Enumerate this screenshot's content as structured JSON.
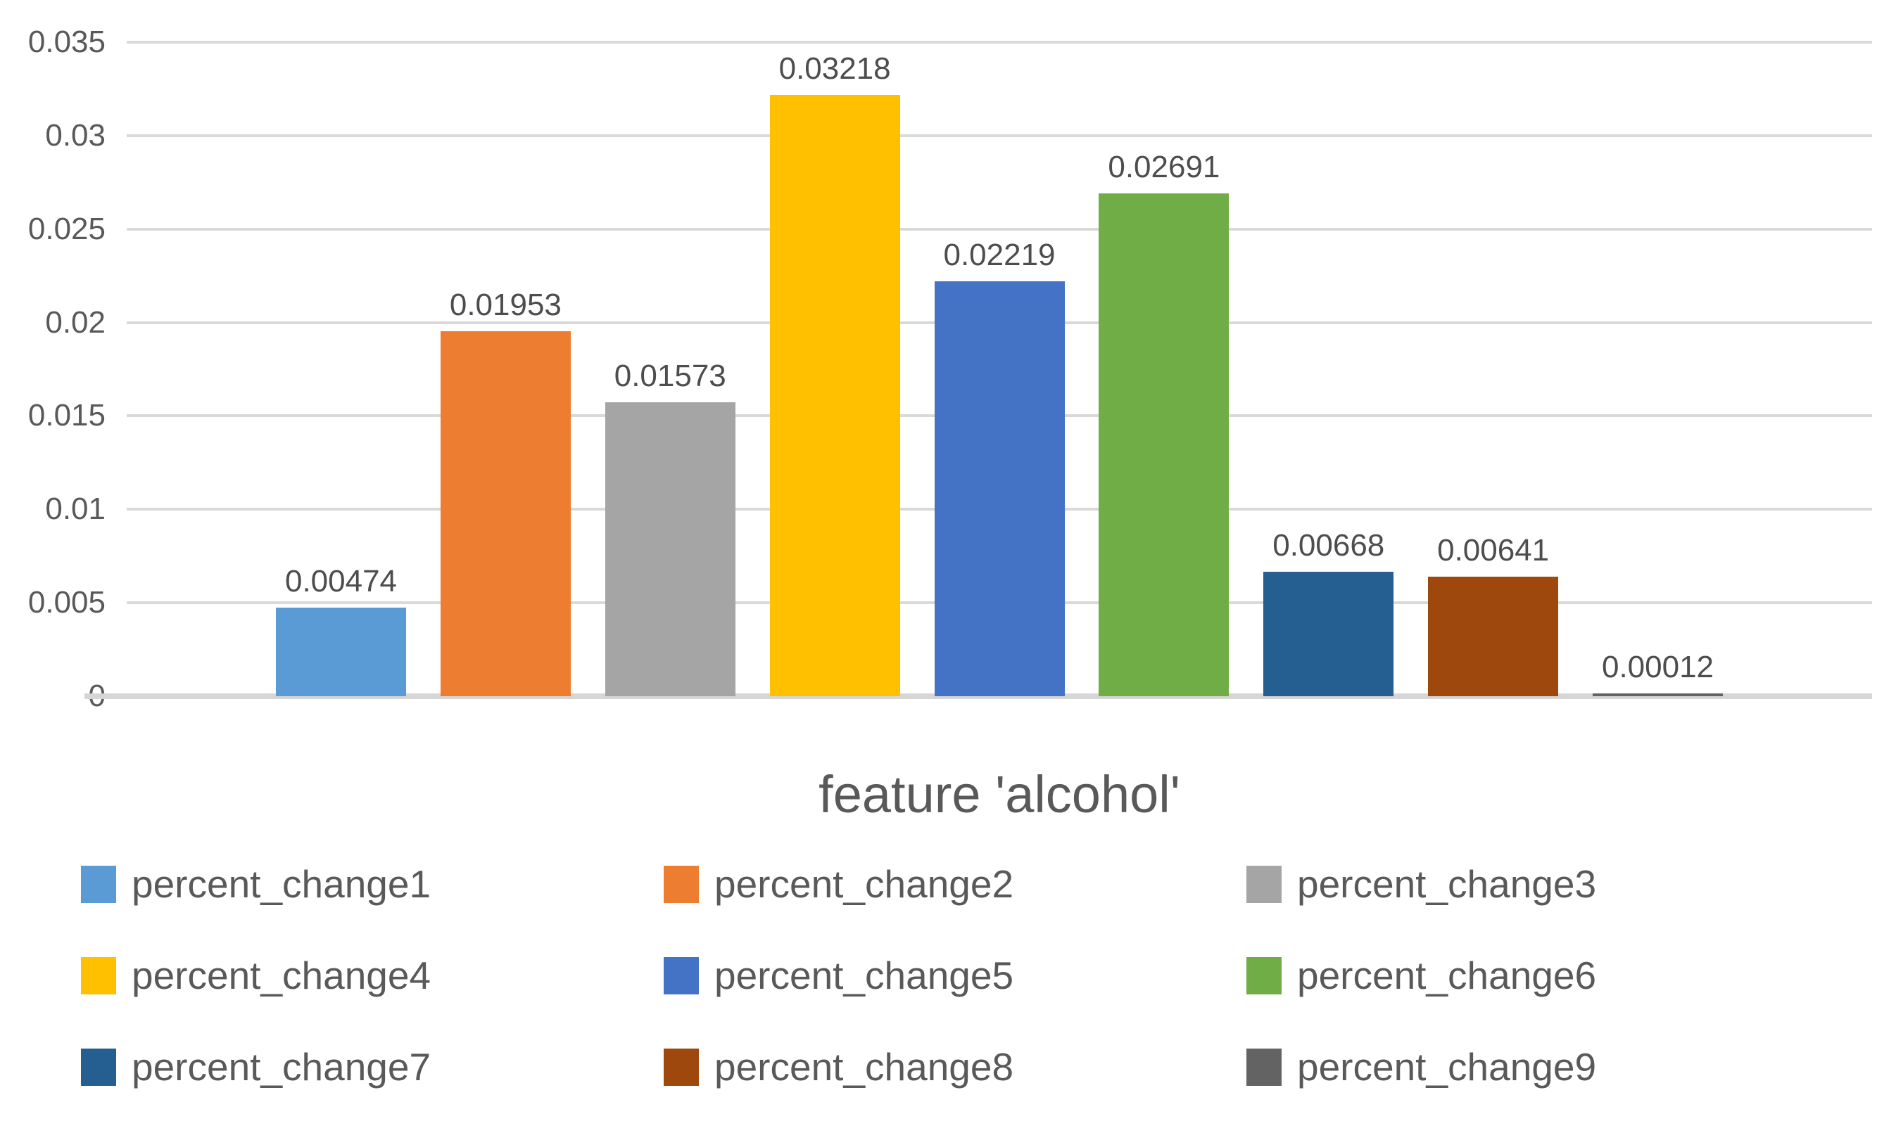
{
  "chart_data": {
    "type": "bar",
    "title": "feature 'alcohol'",
    "categories": [
      "percent_change1",
      "percent_change2",
      "percent_change3",
      "percent_change4",
      "percent_change5",
      "percent_change6",
      "percent_change7",
      "percent_change8",
      "percent_change9"
    ],
    "values": [
      0.00474,
      0.01953,
      0.01573,
      0.03218,
      0.02219,
      0.02691,
      0.00668,
      0.00641,
      0.00012
    ],
    "data_labels": [
      "0.00474",
      "0.01953",
      "0.01573",
      "0.03218",
      "0.02219",
      "0.02691",
      "0.00668",
      "0.00641",
      "0.00012"
    ],
    "colors": [
      "#5B9BD5",
      "#ED7D31",
      "#A5A5A5",
      "#FFC000",
      "#4472C4",
      "#70AD47",
      "#255E91",
      "#9E480E",
      "#636363"
    ],
    "xlabel": "",
    "ylabel": "",
    "ylim": [
      0,
      0.035
    ],
    "y_tick_labels": [
      "0.035",
      "0.03",
      "0.025",
      "0.02",
      "0.015",
      "0.01",
      "0.005",
      "0"
    ],
    "grid": true,
    "legend_position": "bottom",
    "legend_columns": 3,
    "gridline_color": "#d9d9d9",
    "text_color": "#595959"
  }
}
